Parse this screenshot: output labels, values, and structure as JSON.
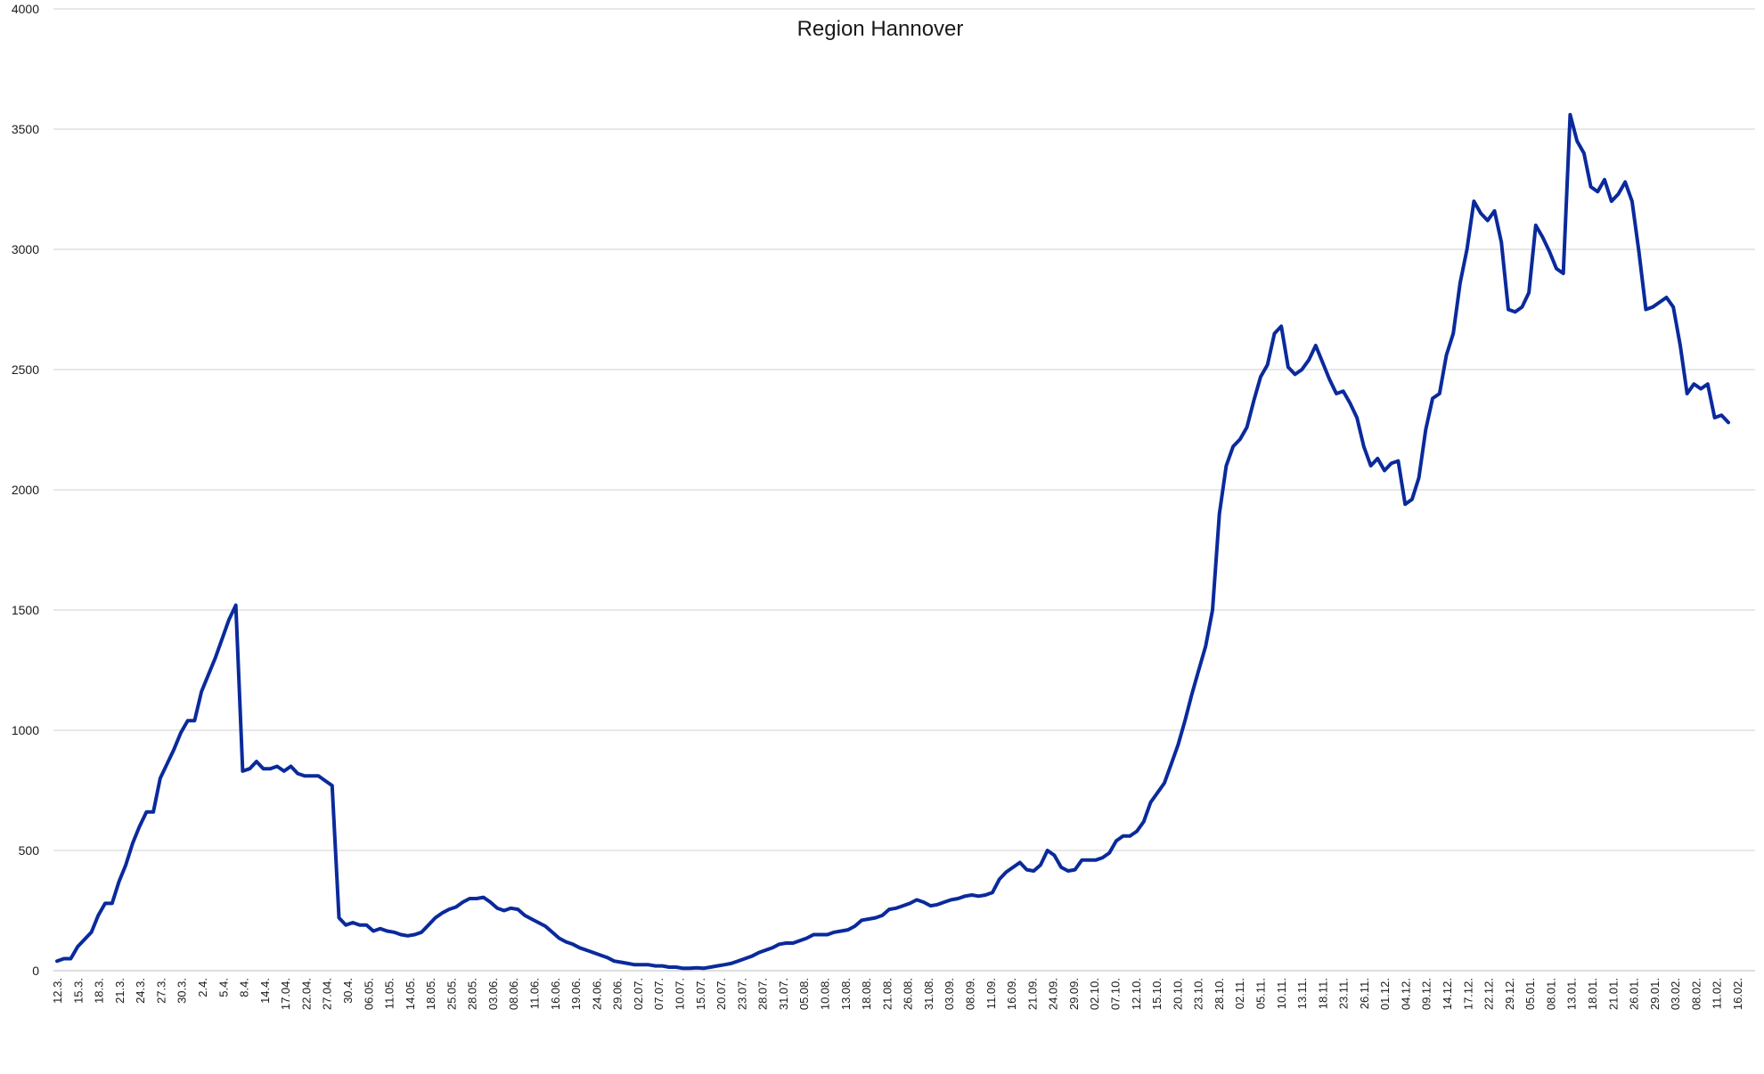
{
  "chart_data": {
    "type": "line",
    "title": "Region Hannover",
    "xlabel": "",
    "ylabel": "",
    "ylim": [
      0,
      4000
    ],
    "yticks": [
      0,
      500,
      1000,
      1500,
      2000,
      2500,
      3000,
      3500,
      4000
    ],
    "grid": true,
    "legend": "none",
    "line_color": "#0a2a9c",
    "xtick_labels": [
      "12.3.",
      "15.3.",
      "18.3.",
      "21.3.",
      "24.3.",
      "27.3.",
      "30.3.",
      "2.4.",
      "5.4.",
      "8.4.",
      "14.4.",
      "17.04.",
      "22.04.",
      "27.04.",
      "30.4.",
      "06.05.",
      "11.05.",
      "14.05.",
      "18.05.",
      "25.05.",
      "28.05.",
      "03.06.",
      "08.06.",
      "11.06.",
      "16.06.",
      "19.06.",
      "24.06.",
      "29.06.",
      "02.07.",
      "07.07.",
      "10.07.",
      "15.07.",
      "20.07.",
      "23.07.",
      "28.07.",
      "31.07.",
      "05.08.",
      "10.08.",
      "13.08.",
      "18.08.",
      "21.08.",
      "26.08.",
      "31.08.",
      "03.09.",
      "08.09.",
      "11.09.",
      "16.09.",
      "21.09.",
      "24.09.",
      "29.09.",
      "02.10.",
      "07.10.",
      "12.10.",
      "15.10.",
      "20.10.",
      "23.10.",
      "28.10.",
      "02.11.",
      "05.11.",
      "10.11.",
      "13.11.",
      "18.11.",
      "23.11.",
      "26.11.",
      "01.12.",
      "04.12.",
      "09.12.",
      "14.12.",
      "17.12.",
      "22.12.",
      "29.12.",
      "05.01.",
      "08.01.",
      "13.01.",
      "18.01.",
      "21.01.",
      "26.01.",
      "29.01.",
      "03.02.",
      "08.02.",
      "11.02.",
      "16.02."
    ],
    "series": [
      {
        "values": [
          40,
          50,
          50,
          100,
          130,
          160,
          230,
          280,
          280,
          370,
          440,
          530,
          600,
          660,
          660,
          800,
          860,
          920,
          990,
          1040,
          1040,
          1160,
          1230,
          1300,
          1380,
          1460,
          1520,
          830,
          840,
          870,
          840,
          840,
          850,
          830,
          850,
          820,
          810,
          810,
          810,
          790,
          770,
          220,
          190,
          200,
          190,
          190,
          165,
          175,
          165,
          160,
          150,
          145,
          150,
          160,
          190,
          220,
          240,
          255,
          265,
          285,
          300,
          300,
          305,
          285,
          260,
          250,
          260,
          255,
          230,
          215,
          200,
          185,
          160,
          135,
          120,
          110,
          95,
          85,
          75,
          65,
          55,
          40,
          35,
          30,
          25,
          25,
          25,
          20,
          20,
          15,
          15,
          10,
          10,
          12,
          10,
          15,
          20,
          25,
          30,
          40,
          50,
          60,
          75,
          85,
          95,
          110,
          115,
          115,
          125,
          135,
          150,
          150,
          150,
          160,
          165,
          170,
          185,
          210,
          215,
          220,
          230,
          255,
          260,
          270,
          280,
          295,
          285,
          270,
          275,
          285,
          295,
          300,
          310,
          315,
          310,
          315,
          325,
          380,
          410,
          430,
          450,
          420,
          415,
          440,
          500,
          480,
          430,
          415,
          420,
          460,
          460,
          460,
          470,
          490,
          540,
          560,
          560,
          580,
          620,
          700,
          740,
          780,
          860,
          940,
          1040,
          1150,
          1250,
          1350,
          1500,
          1900,
          2100,
          2180,
          2210,
          2260,
          2370,
          2470,
          2520,
          2650,
          2680,
          2510,
          2480,
          2500,
          2540,
          2600,
          2530,
          2460,
          2400,
          2410,
          2360,
          2300,
          2180,
          2100,
          2130,
          2080,
          2110,
          2120,
          1940,
          1960,
          2050,
          2250,
          2380,
          2400,
          2560,
          2650,
          2860,
          3000,
          3200,
          3150,
          3120,
          3160,
          3030,
          2750,
          2740,
          2760,
          2820,
          3100,
          3050,
          2990,
          2920,
          2900,
          3560,
          3450,
          3400,
          3260,
          3240,
          3290,
          3200,
          3230,
          3280,
          3200,
          2990,
          2750,
          2760,
          2780,
          2800,
          2760,
          2600,
          2400,
          2440,
          2420,
          2440,
          2300,
          2310,
          2280
        ]
      }
    ]
  }
}
